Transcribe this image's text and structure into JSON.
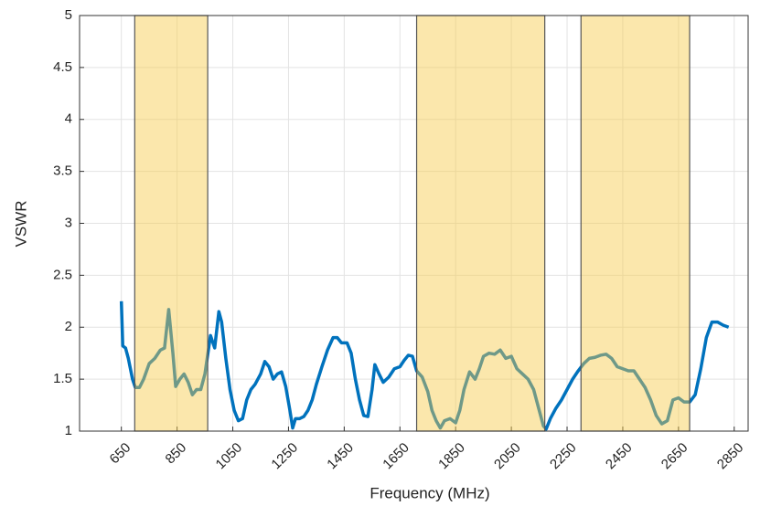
{
  "chart_data": {
    "type": "line",
    "xlabel": "Frequency (MHz)",
    "ylabel": "VSWR",
    "xlim": [
      500,
      2900
    ],
    "ylim": [
      1,
      5
    ],
    "xticks": [
      650,
      850,
      1050,
      1250,
      1450,
      1650,
      1850,
      2050,
      2250,
      2450,
      2650,
      2850
    ],
    "yticks": [
      1,
      1.5,
      2,
      2.5,
      3,
      3.5,
      4,
      4.5,
      5
    ],
    "grid": true,
    "shaded_regions": [
      [
        698,
        960
      ],
      [
        1710,
        2170
      ],
      [
        2300,
        2690
      ]
    ],
    "shaded_color": "#f7c948",
    "x": [
      650,
      655,
      665,
      675,
      690,
      700,
      715,
      730,
      750,
      770,
      790,
      805,
      820,
      835,
      845,
      860,
      875,
      890,
      905,
      920,
      935,
      950,
      970,
      985,
      1000,
      1010,
      1025,
      1040,
      1055,
      1070,
      1085,
      1100,
      1115,
      1130,
      1150,
      1165,
      1180,
      1195,
      1210,
      1225,
      1240,
      1255,
      1265,
      1275,
      1290,
      1305,
      1320,
      1335,
      1350,
      1370,
      1390,
      1410,
      1425,
      1440,
      1460,
      1475,
      1490,
      1505,
      1520,
      1535,
      1550,
      1560,
      1575,
      1590,
      1610,
      1630,
      1650,
      1665,
      1680,
      1695,
      1710,
      1730,
      1750,
      1765,
      1780,
      1795,
      1810,
      1830,
      1850,
      1865,
      1880,
      1900,
      1920,
      1935,
      1950,
      1970,
      1990,
      2010,
      2030,
      2050,
      2070,
      2090,
      2110,
      2130,
      2150,
      2165,
      2175,
      2190,
      2210,
      2230,
      2250,
      2270,
      2290,
      2310,
      2330,
      2350,
      2370,
      2390,
      2410,
      2430,
      2450,
      2470,
      2490,
      2510,
      2530,
      2550,
      2570,
      2590,
      2610,
      2630,
      2650,
      2670,
      2690,
      2710,
      2730,
      2750,
      2770,
      2790,
      2810,
      2830
    ],
    "series": [
      {
        "color": "#0072bd",
        "values": [
          2.25,
          1.82,
          1.8,
          1.7,
          1.5,
          1.42,
          1.42,
          1.5,
          1.65,
          1.7,
          1.78,
          1.8,
          2.17,
          1.75,
          1.43,
          1.5,
          1.55,
          1.47,
          1.35,
          1.4,
          1.4,
          1.55,
          1.92,
          1.8,
          2.15,
          2.05,
          1.7,
          1.4,
          1.2,
          1.1,
          1.12,
          1.3,
          1.4,
          1.45,
          1.55,
          1.67,
          1.62,
          1.5,
          1.55,
          1.57,
          1.43,
          1.2,
          1.03,
          1.12,
          1.12,
          1.14,
          1.2,
          1.3,
          1.45,
          1.62,
          1.78,
          1.9,
          1.9,
          1.85,
          1.85,
          1.75,
          1.5,
          1.3,
          1.15,
          1.14,
          1.4,
          1.64,
          1.55,
          1.47,
          1.52,
          1.6,
          1.62,
          1.68,
          1.73,
          1.72,
          1.58,
          1.52,
          1.38,
          1.2,
          1.1,
          1.03,
          1.1,
          1.12,
          1.08,
          1.2,
          1.4,
          1.57,
          1.5,
          1.6,
          1.72,
          1.75,
          1.74,
          1.78,
          1.7,
          1.72,
          1.6,
          1.55,
          1.5,
          1.4,
          1.2,
          1.05,
          1.02,
          1.12,
          1.22,
          1.3,
          1.4,
          1.5,
          1.58,
          1.65,
          1.7,
          1.71,
          1.73,
          1.74,
          1.7,
          1.62,
          1.6,
          1.58,
          1.58,
          1.5,
          1.42,
          1.3,
          1.15,
          1.07,
          1.1,
          1.3,
          1.32,
          1.28,
          1.28,
          1.35,
          1.6,
          1.9,
          2.05,
          2.05,
          2.02,
          2.0
        ]
      }
    ]
  }
}
